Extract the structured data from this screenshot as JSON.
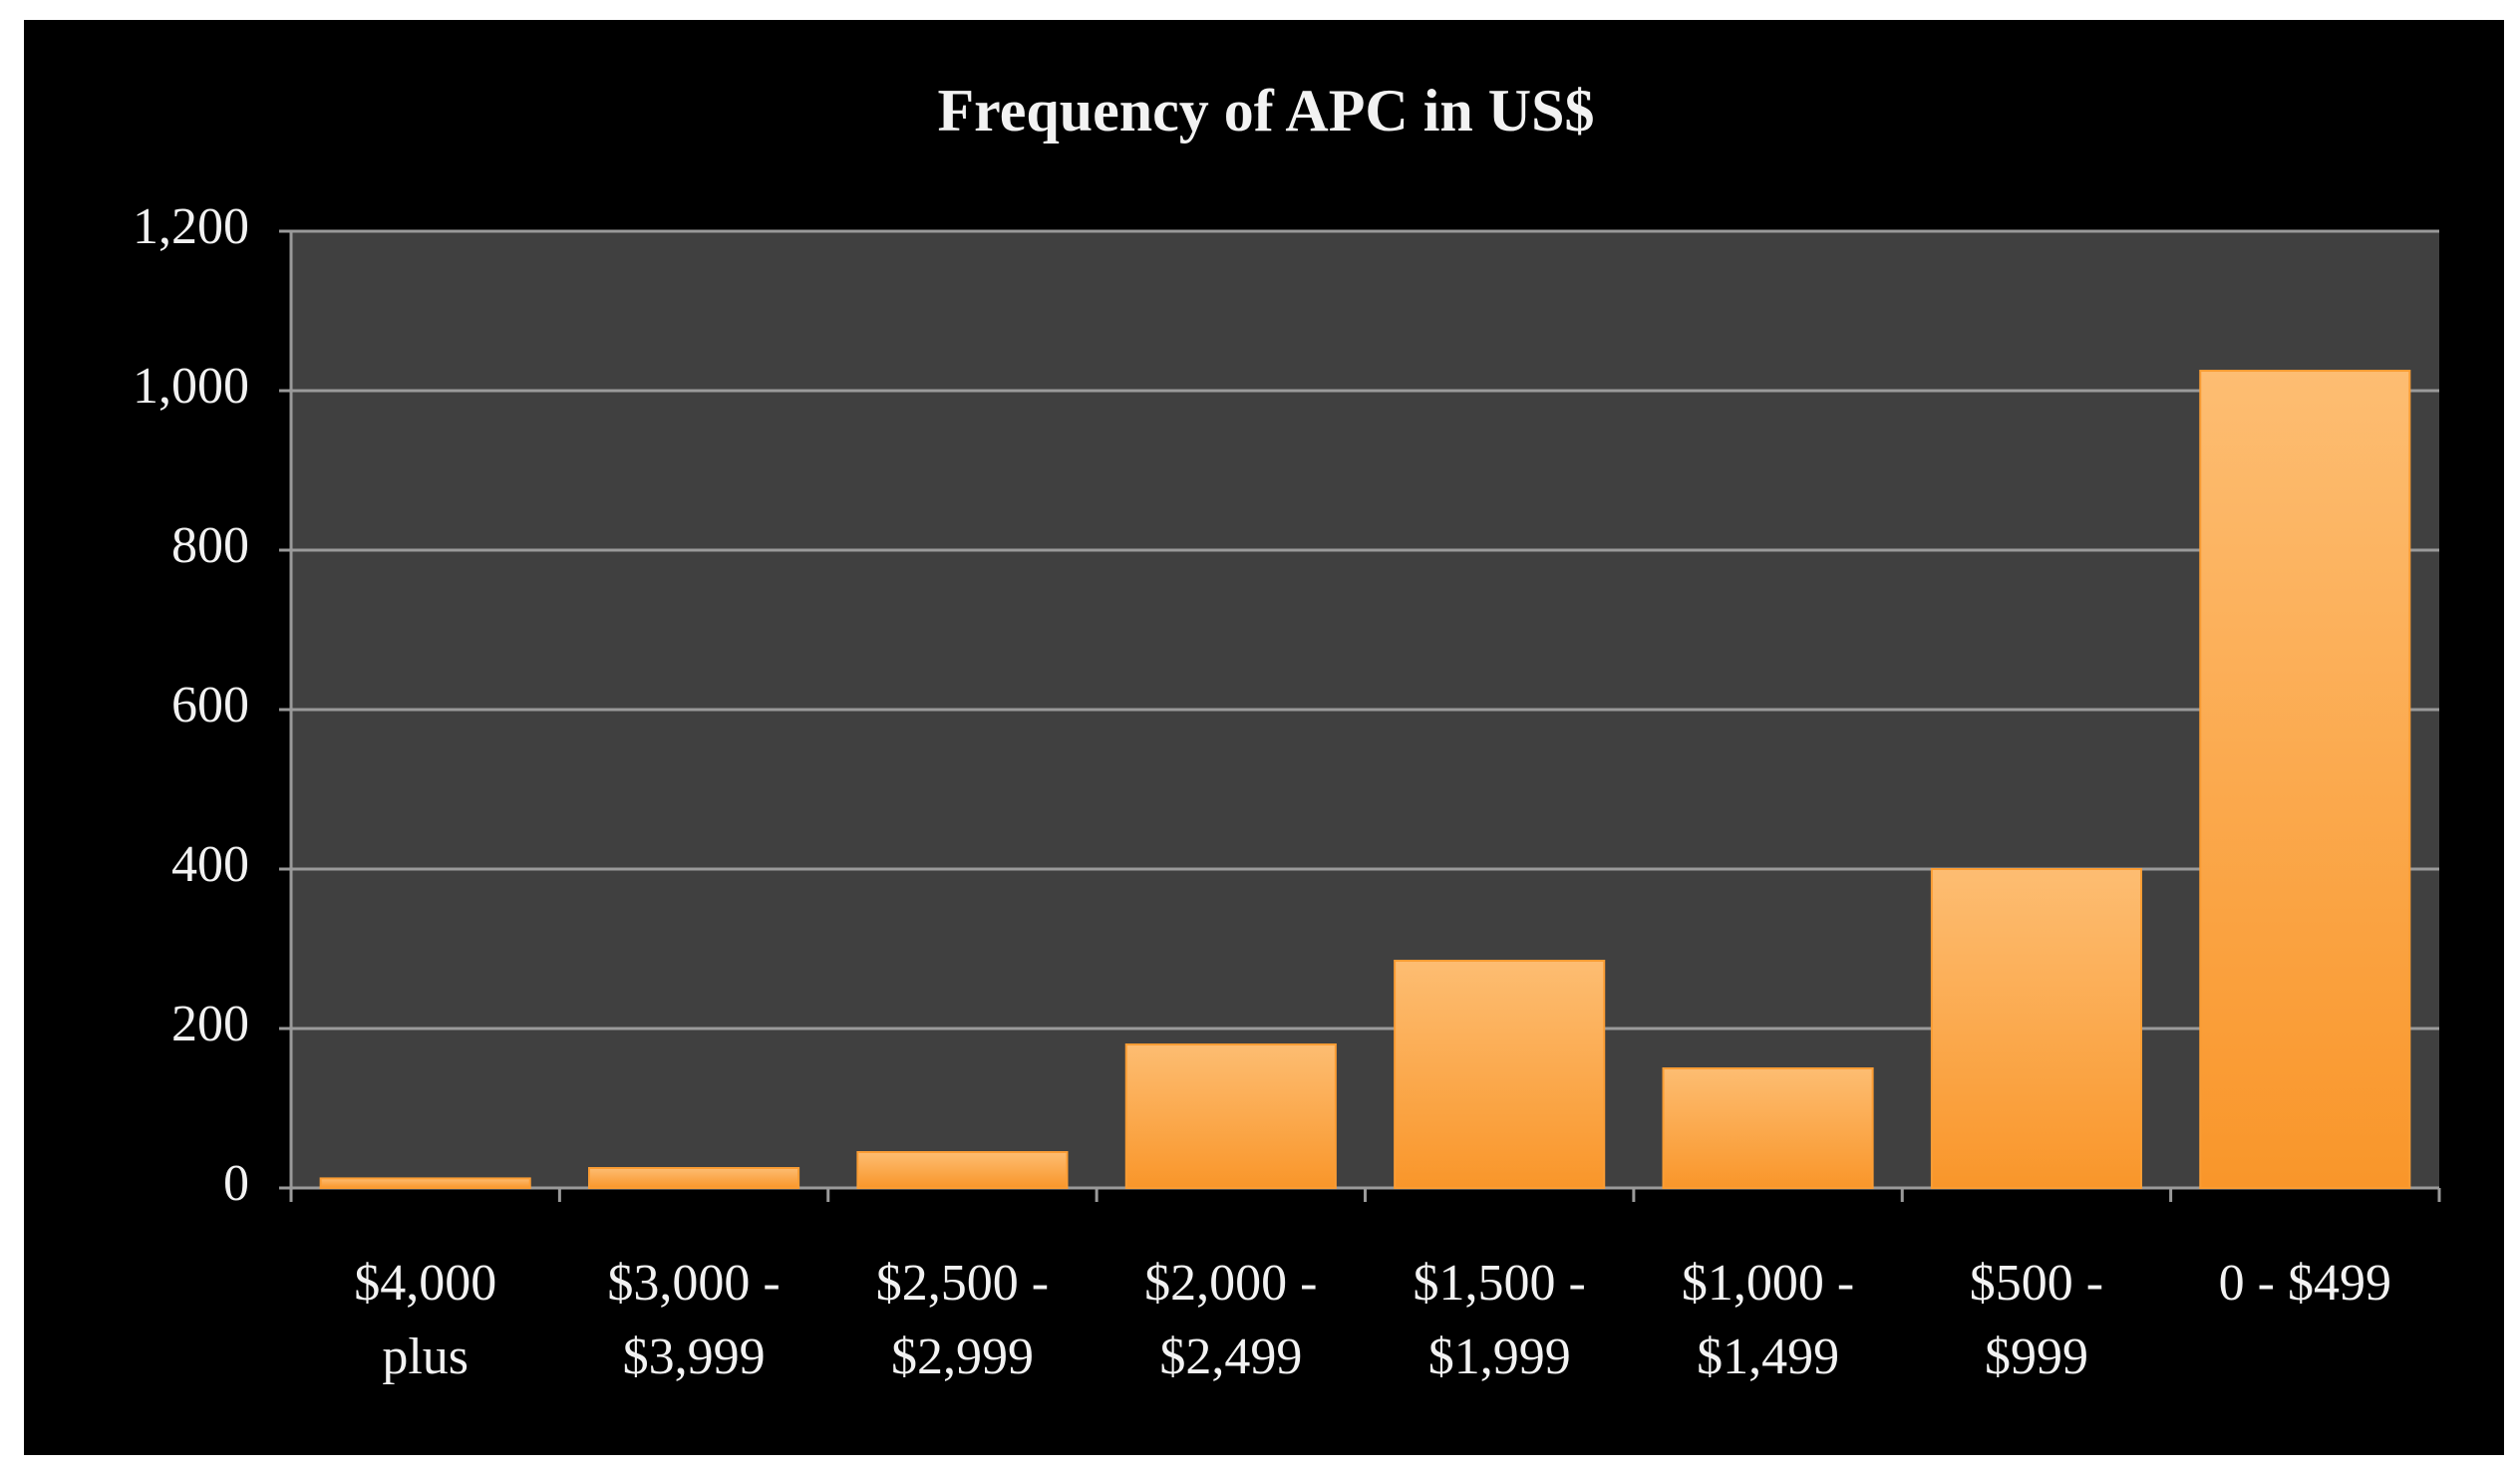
{
  "chart_data": {
    "type": "bar",
    "title": "Frequency of APC in US$",
    "categories": [
      [
        "$4,000",
        "plus"
      ],
      [
        "$3,000 -",
        "$3,999"
      ],
      [
        "$2,500 -",
        "$2,999"
      ],
      [
        "$2,000 -",
        "$2,499"
      ],
      [
        "$1,500 -",
        "$1,999"
      ],
      [
        "$1,000 -",
        "$1,499"
      ],
      [
        "$500 -",
        "$999"
      ],
      [
        "0 - $499"
      ]
    ],
    "values": [
      12,
      25,
      45,
      180,
      285,
      150,
      400,
      1025
    ],
    "color": "#fb9d34",
    "ylim": [
      0,
      1200
    ],
    "yticks": [
      0,
      200,
      400,
      600,
      800,
      {
        "value": 1000,
        "label": "1,000"
      },
      {
        "value": 1200,
        "label": "1,200"
      }
    ],
    "grid": true
  }
}
